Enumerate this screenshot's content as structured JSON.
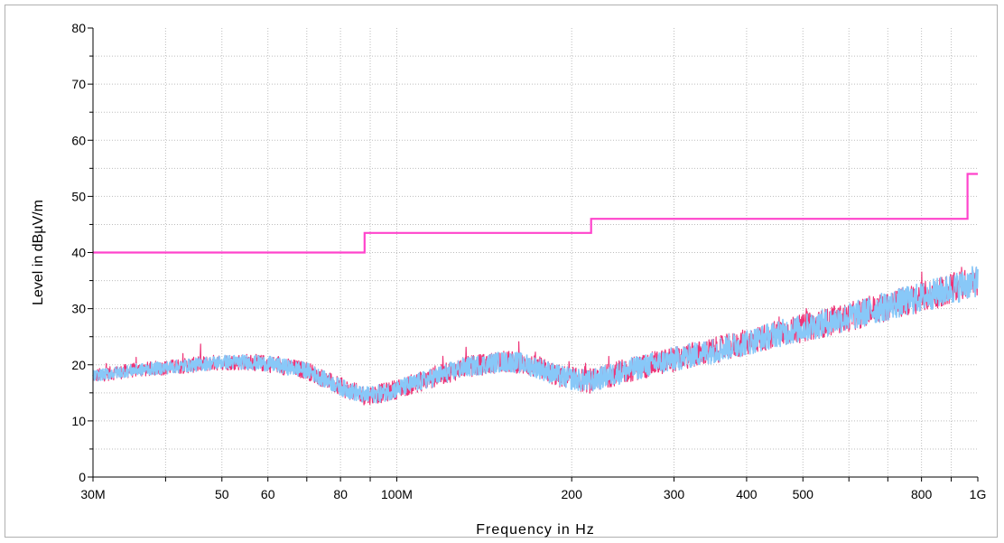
{
  "chart_data": {
    "type": "line",
    "title": "",
    "xlabel": "Frequency in Hz",
    "ylabel": "Level in dBµV/m",
    "x_scale": "log",
    "xlim": [
      30000000,
      1000000000
    ],
    "ylim": [
      0,
      80
    ],
    "grid": true,
    "legend": "none",
    "x_ticks": [
      {
        "value": 30000000,
        "label": "30M"
      },
      {
        "value": 50000000,
        "label": "50"
      },
      {
        "value": 60000000,
        "label": "60"
      },
      {
        "value": 80000000,
        "label": "80"
      },
      {
        "value": 100000000,
        "label": "100M"
      },
      {
        "value": 200000000,
        "label": "200"
      },
      {
        "value": 300000000,
        "label": "300"
      },
      {
        "value": 400000000,
        "label": "400"
      },
      {
        "value": 500000000,
        "label": "500"
      },
      {
        "value": 800000000,
        "label": "800"
      },
      {
        "value": 1000000000,
        "label": "1G"
      }
    ],
    "y_ticks": [
      0,
      10,
      20,
      30,
      40,
      50,
      60,
      70,
      80
    ],
    "series": [
      {
        "color": "#ff44cc",
        "style": "step",
        "x": [
          30000000,
          88000000,
          88000000,
          216000000,
          216000000,
          960000000,
          960000000,
          1000000000
        ],
        "y": [
          40,
          40,
          43.5,
          43.5,
          46,
          46,
          54,
          54
        ]
      },
      {
        "color": "#ee3377",
        "style": "noisy",
        "x": [
          30000000,
          35000000,
          40000000,
          45000000,
          50000000,
          55000000,
          60000000,
          70000000,
          80000000,
          88000000,
          95000000,
          110000000,
          130000000,
          150000000,
          160000000,
          175000000,
          190000000,
          200000000,
          215000000,
          230000000,
          260000000,
          300000000,
          350000000,
          400000000,
          450000000,
          500000000,
          600000000,
          700000000,
          800000000,
          900000000,
          1000000000
        ],
        "y": [
          18,
          19,
          19.5,
          20,
          20.5,
          20.5,
          20.2,
          19,
          16,
          14.5,
          15,
          17,
          19.5,
          20.5,
          20.5,
          19.5,
          18,
          17.5,
          17,
          18,
          19.5,
          21,
          22.5,
          24,
          25.5,
          26.5,
          28.5,
          30.5,
          32,
          33.5,
          35
        ]
      },
      {
        "color": "#88c8f8",
        "style": "noisy-band",
        "x": [
          30000000,
          35000000,
          40000000,
          45000000,
          50000000,
          55000000,
          60000000,
          70000000,
          80000000,
          88000000,
          95000000,
          110000000,
          130000000,
          150000000,
          160000000,
          175000000,
          190000000,
          200000000,
          215000000,
          230000000,
          260000000,
          300000000,
          350000000,
          400000000,
          450000000,
          500000000,
          600000000,
          700000000,
          800000000,
          900000000,
          1000000000
        ],
        "y": [
          18,
          19,
          19.5,
          20,
          20.5,
          20.5,
          20.2,
          19,
          16,
          14.5,
          15,
          17,
          19.5,
          20.5,
          20.5,
          19.5,
          18,
          17.5,
          17,
          18,
          19.5,
          21,
          22.5,
          24,
          25.5,
          26.5,
          28.5,
          30.5,
          32,
          33.5,
          35
        ]
      }
    ]
  }
}
